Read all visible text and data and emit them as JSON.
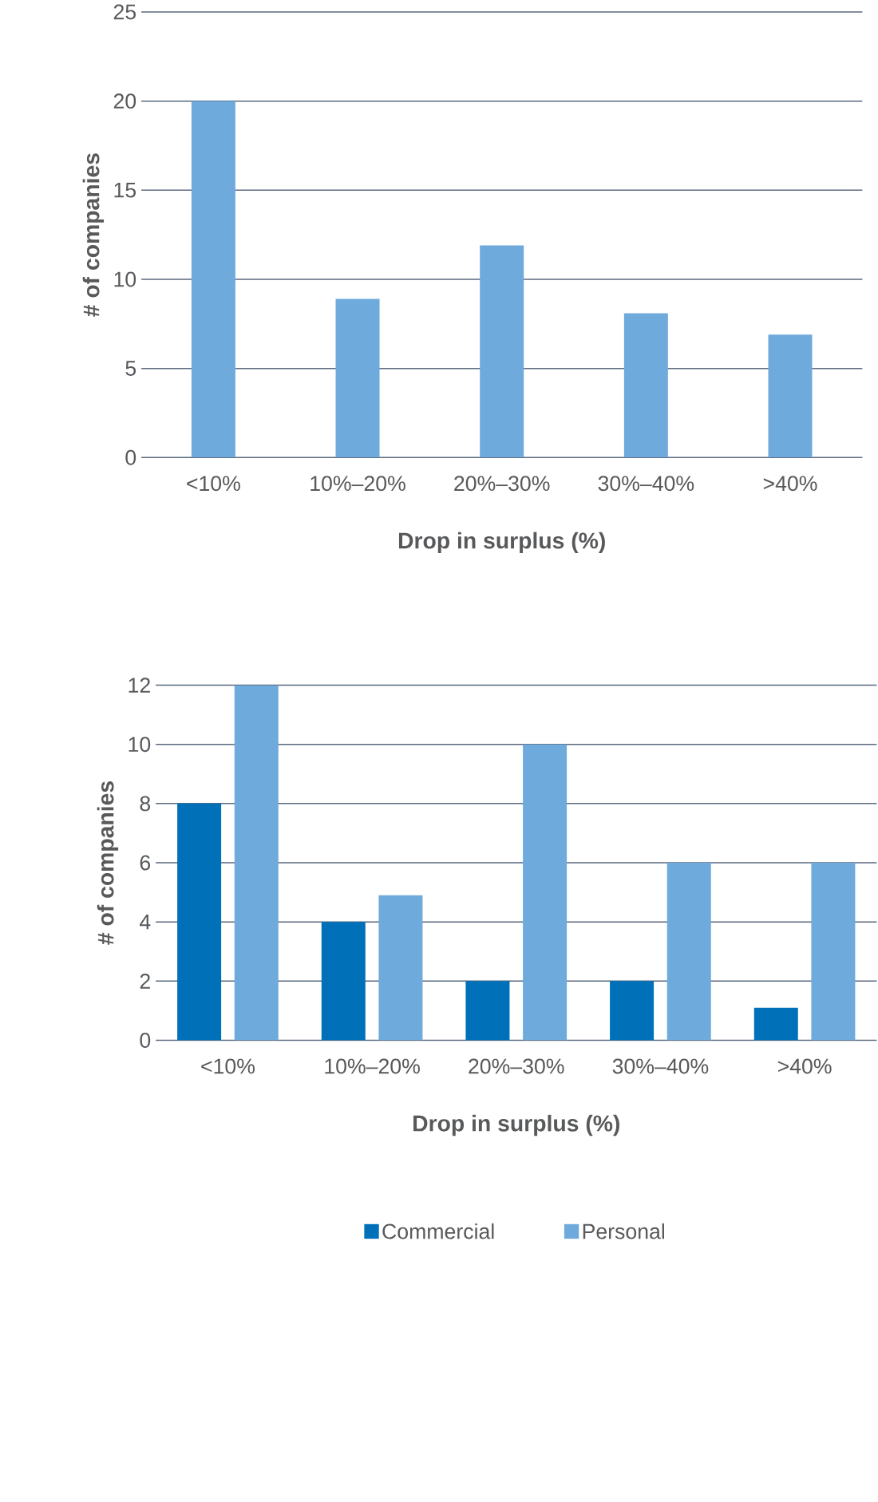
{
  "chart_data": [
    {
      "type": "bar",
      "categories": [
        "<10%",
        "10%–20%",
        "20%–30%",
        "30%–40%",
        ">40%"
      ],
      "values": [
        20,
        8.9,
        11.9,
        8.1,
        6.9
      ],
      "color": "#6faadc",
      "ylim": [
        0,
        25
      ],
      "yticks": [
        0,
        5,
        10,
        15,
        20,
        25
      ],
      "xlabel": "Drop in surplus (%)",
      "ylabel": "# of companies",
      "grid": "y"
    },
    {
      "type": "bar",
      "categories": [
        "<10%",
        "10%–20%",
        "20%–30%",
        "30%–40%",
        ">40%"
      ],
      "series": [
        {
          "name": "Commercial",
          "color": "#0070b8",
          "values": [
            8,
            4,
            2,
            2,
            1.1
          ]
        },
        {
          "name": "Personal",
          "color": "#6faadc",
          "values": [
            12,
            4.9,
            10,
            6,
            6
          ]
        }
      ],
      "ylim": [
        0,
        12
      ],
      "yticks": [
        0,
        2,
        4,
        6,
        8,
        10,
        12
      ],
      "xlabel": "Drop in surplus (%)",
      "ylabel": "# of companies",
      "grid": "y",
      "legend": "bottom"
    }
  ]
}
